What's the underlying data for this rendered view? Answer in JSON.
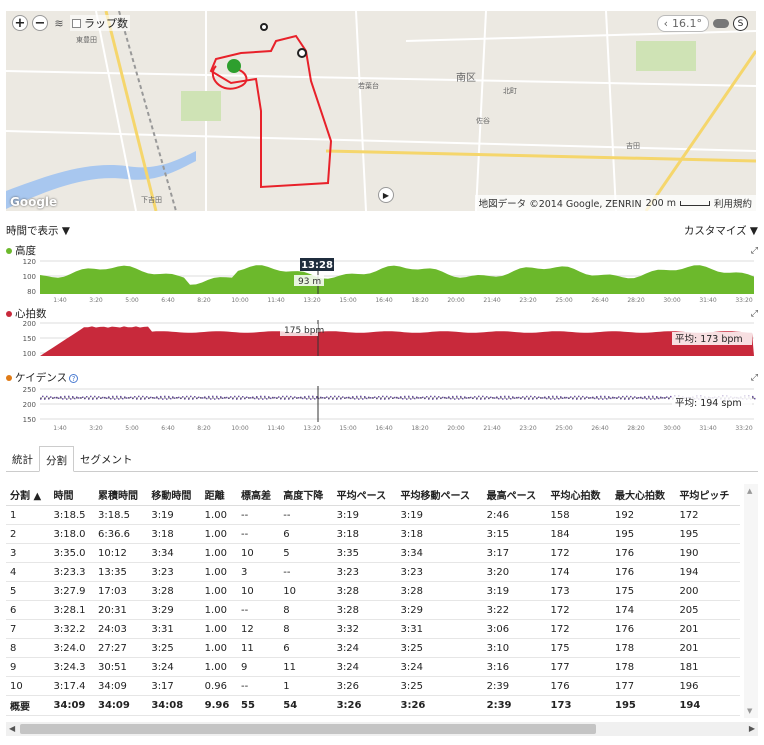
{
  "map": {
    "lap_toggle_label": "ラップ数",
    "temperature": "16.1°",
    "attribution": "地図データ ©2014 Google, ZENRIN",
    "scale": "200 m",
    "terms": "利用規約",
    "google": "Google",
    "labels": [
      "南区",
      "東豊田",
      "若葉台",
      "北町",
      "佐谷",
      "吉田",
      "下吉田"
    ]
  },
  "view": {
    "time_label": "時間で表示 ▼",
    "customize_label": "カスタマイズ ▼"
  },
  "charts": {
    "elevation": {
      "label": "高度",
      "color": "#6cb92c",
      "y_ticks": [
        "120",
        "100",
        "80"
      ],
      "cursor_time": "13:28",
      "cursor_value": "93 m"
    },
    "heart_rate": {
      "label": "心拍数",
      "color": "#c8293b",
      "y_ticks": [
        "200",
        "150",
        "100"
      ],
      "cursor_value": "175 bpm",
      "average": "平均: 173 bpm"
    },
    "cadence": {
      "label": "ケイデンス",
      "color": "#6a4fa0",
      "y_ticks": [
        "250",
        "200",
        "150"
      ],
      "average": "平均: 194 spm"
    },
    "x_ticks": [
      "1:40",
      "3:20",
      "5:00",
      "6:40",
      "8:20",
      "10:00",
      "11:40",
      "13:20",
      "15:00",
      "16:40",
      "18:20",
      "20:00",
      "21:40",
      "23:20",
      "25:00",
      "26:40",
      "28:20",
      "30:00",
      "31:40",
      "33:20"
    ]
  },
  "tabs": [
    "統計",
    "分割",
    "セグメント"
  ],
  "table": {
    "headers": [
      "分割 ▲",
      "時間",
      "累積時間",
      "移動時間",
      "距離",
      "標高差",
      "高度下降",
      "平均ペース",
      "平均移動ペース",
      "最高ペース",
      "平均心拍数",
      "最大心拍数",
      "平均ピッチ"
    ],
    "rows": [
      [
        "1",
        "3:18.5",
        "3:18.5",
        "3:19",
        "1.00",
        "--",
        "--",
        "3:19",
        "3:19",
        "2:46",
        "158",
        "192",
        "172"
      ],
      [
        "2",
        "3:18.0",
        "6:36.6",
        "3:18",
        "1.00",
        "--",
        "6",
        "3:18",
        "3:18",
        "3:15",
        "184",
        "195",
        "195"
      ],
      [
        "3",
        "3:35.0",
        "10:12",
        "3:34",
        "1.00",
        "10",
        "5",
        "3:35",
        "3:34",
        "3:17",
        "172",
        "176",
        "190"
      ],
      [
        "4",
        "3:23.3",
        "13:35",
        "3:23",
        "1.00",
        "3",
        "--",
        "3:23",
        "3:23",
        "3:20",
        "174",
        "176",
        "194"
      ],
      [
        "5",
        "3:27.9",
        "17:03",
        "3:28",
        "1.00",
        "10",
        "10",
        "3:28",
        "3:28",
        "3:19",
        "173",
        "175",
        "200"
      ],
      [
        "6",
        "3:28.1",
        "20:31",
        "3:29",
        "1.00",
        "--",
        "8",
        "3:28",
        "3:29",
        "3:22",
        "172",
        "174",
        "205"
      ],
      [
        "7",
        "3:32.2",
        "24:03",
        "3:31",
        "1.00",
        "12",
        "8",
        "3:32",
        "3:31",
        "3:06",
        "172",
        "176",
        "201"
      ],
      [
        "8",
        "3:24.0",
        "27:27",
        "3:25",
        "1.00",
        "11",
        "6",
        "3:24",
        "3:25",
        "3:10",
        "175",
        "178",
        "201"
      ],
      [
        "9",
        "3:24.3",
        "30:51",
        "3:24",
        "1.00",
        "9",
        "11",
        "3:24",
        "3:24",
        "3:16",
        "177",
        "178",
        "181"
      ],
      [
        "10",
        "3:17.4",
        "34:09",
        "3:17",
        "0.96",
        "--",
        "1",
        "3:26",
        "3:25",
        "2:39",
        "176",
        "177",
        "196"
      ]
    ],
    "summary": [
      "概要",
      "34:09",
      "34:09",
      "34:08",
      "9.96",
      "55",
      "54",
      "3:26",
      "3:26",
      "2:39",
      "173",
      "195",
      "194"
    ]
  }
}
